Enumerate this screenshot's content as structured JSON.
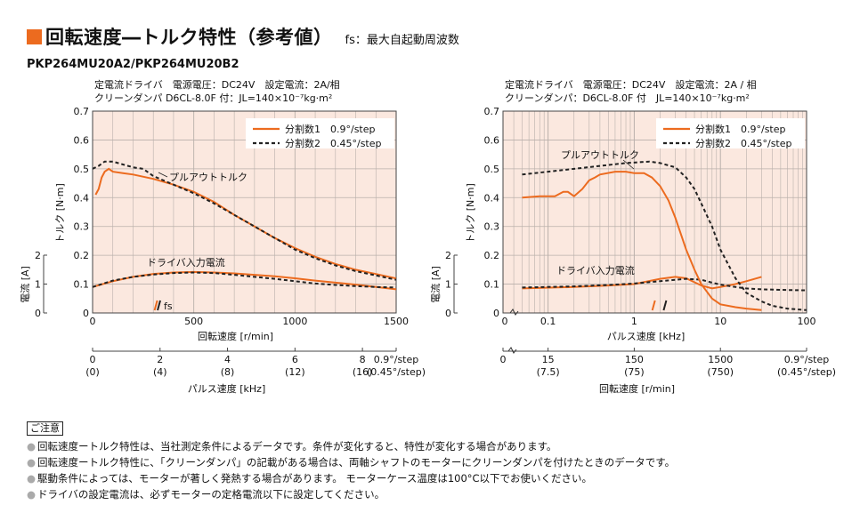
{
  "header": {
    "title": "回転速度―トルク特性（参考値）",
    "fs_note": "fs：最大自起動周波数"
  },
  "model": "PKP264MU20A2/PKP264MU20B2",
  "colors": {
    "accent": "#ec6b1f",
    "plot_bg": "#fbe8df",
    "curve1": "#ec6b1f",
    "curve2": "#222222"
  },
  "charts": [
    {
      "cond_line1": "定電流ドライバ　電源電圧：DC24V　設定電流：2A/相",
      "cond_line2": "クリーンダンパ D6CL-8.0F 付：JL=140×10⁻⁷kg·m²",
      "legend1": "分割数1　0.9°/step",
      "legend2": "分割数2　0.45°/step",
      "y_label": "トルク [N·m]",
      "y_ticks": [
        "0.7",
        "0.6",
        "0.5",
        "0.4",
        "0.3",
        "0.2",
        "0.1",
        "0"
      ],
      "current_label": "電流 [A]",
      "current_ticks": [
        "2",
        "1",
        "0"
      ],
      "x_ticks": [
        "0",
        "500",
        "1000",
        "1500"
      ],
      "x_label": "回転速度 [r/min]",
      "x2_top": [
        "0",
        "2",
        "4",
        "6",
        "8",
        "0.9°/step"
      ],
      "x2_bottom": [
        "(0)",
        "(4)",
        "(8)",
        "(12)",
        "(16)",
        "(0.45°/step)"
      ],
      "x2_label": "パルス速度 [kHz]",
      "annot_pullout": "プルアウトトルク",
      "annot_current": "ドライバ入力電流",
      "annot_fs": "fs"
    },
    {
      "cond_line1": "定電流ドライバ　電源電圧：DC24V　設定電流：2A / 相",
      "cond_line2": "クリーンダンパ：D6CL-8.0F 付　JL=140×10⁻⁷kg·m²",
      "legend1": "分割数1　0.9°/step",
      "legend2": "分割数2　0.45°/step",
      "y_label": "トルク [N·m]",
      "y_ticks": [
        "0.7",
        "0.6",
        "0.5",
        "0.4",
        "0.3",
        "0.2",
        "0.1",
        "0"
      ],
      "current_label": "電流 [A]",
      "current_ticks": [
        "2",
        "1",
        "0"
      ],
      "x_ticks": [
        "0.1",
        "1",
        "10",
        "100"
      ],
      "x_label": "パルス速度 [kHz]",
      "x2_top": [
        "0",
        "15",
        "150",
        "1500",
        "0.9°/step"
      ],
      "x2_bottom": [
        "",
        "(7.5)",
        "(75)",
        "(750)",
        "(0.45°/step)"
      ],
      "x2_label": "回転速度 [r/min]",
      "annot_pullout": "プルアウトトルク",
      "annot_current": "ドライバ入力電流",
      "annot_fs": "fs"
    }
  ],
  "chart_data": [
    {
      "type": "line",
      "xlabel": "回転速度 [r/min]",
      "ylabel": "トルク [N·m]",
      "xlim": [
        0,
        1500
      ],
      "ylim": [
        0,
        0.7
      ],
      "series": [
        {
          "name": "分割数1　0.9°/step",
          "x": [
            15,
            30,
            45,
            60,
            80,
            100,
            150,
            200,
            300,
            400,
            500,
            600,
            700,
            800,
            900,
            1000,
            1100,
            1200,
            1300,
            1400,
            1500
          ],
          "values": [
            0.41,
            0.43,
            0.47,
            0.49,
            0.5,
            0.49,
            0.485,
            0.48,
            0.465,
            0.445,
            0.42,
            0.385,
            0.34,
            0.3,
            0.26,
            0.225,
            0.195,
            0.17,
            0.15,
            0.135,
            0.12
          ]
        },
        {
          "name": "分割数2　0.45°/step",
          "x": [
            0,
            30,
            60,
            100,
            150,
            200,
            250,
            300,
            400,
            500,
            600,
            700,
            800,
            900,
            1000,
            1100,
            1200,
            1300,
            1400,
            1500
          ],
          "values": [
            0.5,
            0.51,
            0.525,
            0.525,
            0.515,
            0.505,
            0.5,
            0.475,
            0.445,
            0.415,
            0.38,
            0.34,
            0.3,
            0.26,
            0.22,
            0.19,
            0.165,
            0.145,
            0.13,
            0.115
          ]
        },
        {
          "name": "分割数1 電流",
          "x": [
            0,
            100,
            200,
            300,
            400,
            500,
            600,
            700,
            800,
            900,
            1000,
            1100,
            1200,
            1300,
            1400,
            1500
          ],
          "values": [
            0.9,
            1.1,
            1.25,
            1.35,
            1.4,
            1.42,
            1.4,
            1.37,
            1.32,
            1.27,
            1.2,
            1.12,
            1.05,
            0.98,
            0.9,
            0.82
          ]
        },
        {
          "name": "分割数2 電流",
          "x": [
            0,
            100,
            200,
            300,
            400,
            500,
            600,
            700,
            800,
            900,
            1000,
            1100,
            1200,
            1300,
            1400,
            1500
          ],
          "values": [
            0.9,
            1.12,
            1.25,
            1.33,
            1.38,
            1.4,
            1.38,
            1.32,
            1.25,
            1.18,
            1.1,
            1.02,
            0.97,
            0.93,
            0.9,
            0.88
          ]
        }
      ],
      "fs": [
        {
          "x": 315
        },
        {
          "x": 330
        }
      ]
    },
    {
      "type": "line",
      "xlabel": "パルス速度 [kHz]",
      "ylabel": "トルク [N·m]",
      "xscale": "log",
      "xlim": [
        0.03,
        100
      ],
      "ylim": [
        0,
        0.7
      ],
      "series": [
        {
          "name": "分割数1　0.9°/step",
          "x": [
            0.05,
            0.08,
            0.12,
            0.15,
            0.17,
            0.2,
            0.25,
            0.3,
            0.35,
            0.4,
            0.6,
            0.8,
            1,
            1.3,
            1.6,
            2,
            2.5,
            3,
            4,
            5,
            6,
            8,
            10,
            15,
            20,
            30
          ],
          "values": [
            0.4,
            0.405,
            0.405,
            0.42,
            0.42,
            0.405,
            0.43,
            0.46,
            0.47,
            0.48,
            0.49,
            0.49,
            0.485,
            0.485,
            0.47,
            0.44,
            0.39,
            0.33,
            0.22,
            0.15,
            0.1,
            0.05,
            0.03,
            0.02,
            0.015,
            0.01
          ]
        },
        {
          "name": "分割数2　0.45°/step",
          "x": [
            0.05,
            0.1,
            0.2,
            0.4,
            0.8,
            1.5,
            2,
            3,
            4,
            5,
            6,
            8,
            10,
            15,
            20,
            30,
            40,
            60,
            100
          ],
          "values": [
            0.48,
            0.49,
            0.5,
            0.51,
            0.52,
            0.525,
            0.52,
            0.505,
            0.47,
            0.43,
            0.38,
            0.3,
            0.22,
            0.12,
            0.07,
            0.04,
            0.025,
            0.015,
            0.01
          ]
        },
        {
          "name": "分割数1 電流",
          "x": [
            0.05,
            0.2,
            0.5,
            1,
            2,
            3,
            4,
            6,
            8,
            10,
            15,
            20,
            30
          ],
          "values": [
            0.85,
            0.9,
            0.95,
            1.0,
            1.18,
            1.25,
            1.2,
            0.95,
            0.85,
            0.9,
            1.0,
            1.1,
            1.25
          ]
        },
        {
          "name": "分割数2 電流",
          "x": [
            0.05,
            0.2,
            0.5,
            1,
            2,
            4,
            6,
            8,
            10,
            15,
            20,
            30,
            50,
            100
          ],
          "values": [
            0.88,
            0.92,
            0.97,
            1.02,
            1.1,
            1.18,
            1.15,
            1.05,
            0.98,
            0.9,
            0.85,
            0.82,
            0.8,
            0.78
          ]
        }
      ],
      "fs": [
        {
          "x": 1.7
        },
        {
          "x": 2.3
        }
      ]
    }
  ]
}
